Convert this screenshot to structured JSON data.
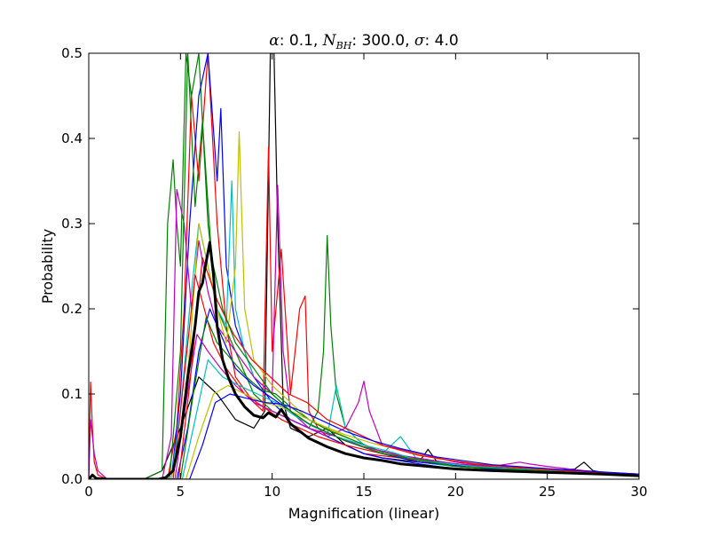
{
  "chart_data": {
    "type": "line",
    "title": {
      "alpha_symbol": "α",
      "alpha_value": ": 0.1, ",
      "nbh_symbol": "N",
      "nbh_subscript": "BH",
      "nbh_value": ": 300.0, ",
      "sigma_symbol": "σ",
      "sigma_value": ": 4.0"
    },
    "xlabel": "Magnification (linear)",
    "ylabel": "Probability",
    "xlim": [
      0,
      30
    ],
    "ylim": [
      0,
      0.5
    ],
    "xticks": [
      0,
      5,
      10,
      15,
      20,
      25,
      30
    ],
    "xtick_labels": [
      "0",
      "5",
      "10",
      "15",
      "20",
      "25",
      "30"
    ],
    "yticks": [
      0.0,
      0.1,
      0.2,
      0.3,
      0.4,
      0.5
    ],
    "ytick_labels": [
      "0.0",
      "0.1",
      "0.2",
      "0.3",
      "0.4",
      "0.5"
    ],
    "grid": false,
    "legend": "none",
    "line_colors": [
      "#ff0000",
      "#008000",
      "#0000ff",
      "#00bfbf",
      "#bf00bf",
      "#bfbf00",
      "#000000"
    ],
    "series": [
      {
        "color": "#000000",
        "emphasis": "thick",
        "x": [
          0,
          0.2,
          0.4,
          1,
          2,
          3,
          3.8,
          4.2,
          4.6,
          5,
          5.4,
          5.8,
          6.0,
          6.2,
          6.4,
          6.6,
          6.8,
          7.0,
          7.3,
          7.6,
          8.0,
          8.5,
          9.0,
          9.5,
          9.8,
          10.2,
          10.5,
          11,
          12,
          13,
          14,
          15,
          16,
          17,
          18,
          20,
          22,
          25,
          28,
          30
        ],
        "y": [
          0.0,
          0.005,
          0.001,
          0.0,
          0.0,
          0.0,
          0.0,
          0.002,
          0.01,
          0.05,
          0.12,
          0.18,
          0.22,
          0.23,
          0.255,
          0.278,
          0.24,
          0.18,
          0.14,
          0.12,
          0.1,
          0.085,
          0.075,
          0.072,
          0.078,
          0.073,
          0.082,
          0.065,
          0.048,
          0.038,
          0.03,
          0.025,
          0.022,
          0.018,
          0.016,
          0.012,
          0.01,
          0.008,
          0.006,
          0.004
        ]
      },
      {
        "color": "#000000",
        "x": [
          3,
          4,
          5,
          6,
          7,
          8,
          9,
          9.6,
          9.9,
          10.1,
          10.3,
          10.6,
          11,
          12,
          13,
          14,
          15,
          16,
          18,
          18.5,
          19,
          20,
          22,
          25,
          26.5,
          27,
          27.5,
          28,
          30
        ],
        "y": [
          0.0,
          0.01,
          0.06,
          0.12,
          0.1,
          0.07,
          0.06,
          0.08,
          0.5,
          0.5,
          0.3,
          0.09,
          0.06,
          0.05,
          0.06,
          0.04,
          0.03,
          0.025,
          0.02,
          0.035,
          0.02,
          0.015,
          0.012,
          0.01,
          0.012,
          0.02,
          0.01,
          0.008,
          0.005
        ]
      },
      {
        "color": "#ff0000",
        "x": [
          0,
          0.1,
          0.2,
          0.3,
          0.5,
          1,
          2,
          3,
          4.3,
          4.8,
          5.2,
          5.6,
          6,
          6.5,
          7,
          7.5,
          8,
          9,
          9.5,
          9.8,
          10,
          10.5,
          11,
          11.5,
          11.8,
          12,
          12.5,
          13,
          14,
          15,
          17,
          20,
          25,
          30
        ],
        "y": [
          0.0,
          0.114,
          0.06,
          0.02,
          0.005,
          0.0,
          0.0,
          0.0,
          0.0,
          0.06,
          0.2,
          0.45,
          0.35,
          0.5,
          0.3,
          0.18,
          0.12,
          0.09,
          0.08,
          0.39,
          0.15,
          0.27,
          0.1,
          0.2,
          0.215,
          0.08,
          0.06,
          0.05,
          0.04,
          0.03,
          0.025,
          0.015,
          0.01,
          0.005
        ]
      },
      {
        "color": "#008000",
        "x": [
          3,
          4,
          4.3,
          4.6,
          4.8,
          5,
          5.3,
          5.6,
          6,
          6.5,
          7,
          8,
          9,
          10,
          11,
          12,
          12.5,
          12.8,
          13,
          13.2,
          13.5,
          14,
          15,
          16,
          18,
          20,
          24,
          30
        ],
        "y": [
          0.0,
          0.01,
          0.3,
          0.375,
          0.3,
          0.25,
          0.5,
          0.45,
          0.5,
          0.3,
          0.2,
          0.15,
          0.1,
          0.08,
          0.07,
          0.06,
          0.08,
          0.15,
          0.286,
          0.18,
          0.1,
          0.06,
          0.04,
          0.03,
          0.02,
          0.015,
          0.01,
          0.005
        ]
      },
      {
        "color": "#0000ff",
        "x": [
          3,
          4.5,
          5,
          5.5,
          6,
          6.5,
          7,
          7.2,
          7.5,
          8,
          9,
          10,
          11,
          12,
          13,
          14,
          15,
          16,
          18,
          20,
          25,
          30
        ],
        "y": [
          0.0,
          0.0,
          0.1,
          0.3,
          0.45,
          0.5,
          0.35,
          0.435,
          0.25,
          0.18,
          0.12,
          0.09,
          0.07,
          0.06,
          0.05,
          0.04,
          0.03,
          0.025,
          0.018,
          0.012,
          0.008,
          0.004
        ]
      },
      {
        "color": "#00bfbf",
        "x": [
          3,
          4.5,
          5,
          5.5,
          6,
          6.5,
          7,
          7.5,
          7.8,
          8,
          8.5,
          9,
          10,
          11,
          12,
          13,
          13.5,
          14,
          15,
          16,
          17,
          18,
          20,
          25,
          30
        ],
        "y": [
          0.0,
          0.0,
          0.08,
          0.2,
          0.3,
          0.25,
          0.2,
          0.18,
          0.35,
          0.2,
          0.15,
          0.12,
          0.1,
          0.08,
          0.06,
          0.05,
          0.11,
          0.06,
          0.04,
          0.03,
          0.05,
          0.02,
          0.015,
          0.01,
          0.005
        ]
      },
      {
        "color": "#bf00bf",
        "x": [
          0,
          0.1,
          0.3,
          0.5,
          1,
          2,
          4,
          4.5,
          4.8,
          5.2,
          5.6,
          6,
          6.5,
          7,
          8,
          9,
          10,
          10.3,
          10.6,
          11,
          12,
          13,
          14,
          14.7,
          15,
          15.3,
          16,
          18,
          20,
          22,
          23.5,
          24,
          25,
          27,
          30
        ],
        "y": [
          0.0,
          0.07,
          0.03,
          0.01,
          0.0,
          0.0,
          0.0,
          0.05,
          0.34,
          0.3,
          0.2,
          0.28,
          0.22,
          0.18,
          0.15,
          0.12,
          0.1,
          0.345,
          0.15,
          0.08,
          0.06,
          0.05,
          0.06,
          0.09,
          0.115,
          0.08,
          0.04,
          0.03,
          0.02,
          0.015,
          0.02,
          0.018,
          0.015,
          0.01,
          0.005
        ]
      },
      {
        "color": "#bfbf00",
        "x": [
          3,
          4.5,
          5,
          5.5,
          6,
          6.5,
          7,
          7.5,
          8,
          8.2,
          8.5,
          9,
          10,
          11,
          12,
          14,
          16,
          20,
          25,
          30
        ],
        "y": [
          0.0,
          0.0,
          0.05,
          0.15,
          0.3,
          0.25,
          0.2,
          0.16,
          0.25,
          0.408,
          0.2,
          0.14,
          0.11,
          0.09,
          0.07,
          0.05,
          0.03,
          0.015,
          0.008,
          0.004
        ]
      },
      {
        "color": "#ff0000",
        "x": [
          3,
          4.6,
          5.2,
          5.8,
          6.3,
          6.8,
          7.5,
          8.5,
          9.5,
          10.5,
          11.5,
          12.5,
          14,
          16,
          20,
          25,
          30
        ],
        "y": [
          0.0,
          0.0,
          0.12,
          0.24,
          0.2,
          0.16,
          0.13,
          0.1,
          0.085,
          0.07,
          0.06,
          0.05,
          0.04,
          0.03,
          0.018,
          0.01,
          0.005
        ]
      },
      {
        "color": "#0000ff",
        "x": [
          3,
          4.8,
          5.4,
          6.0,
          6.6,
          7.2,
          8,
          9,
          10,
          11,
          12,
          13,
          14,
          16,
          18,
          22,
          30
        ],
        "y": [
          0.0,
          0.0,
          0.06,
          0.15,
          0.2,
          0.17,
          0.13,
          0.11,
          0.095,
          0.08,
          0.065,
          0.055,
          0.045,
          0.03,
          0.02,
          0.012,
          0.005
        ]
      },
      {
        "color": "#008000",
        "x": [
          3,
          5,
          5.7,
          6.4,
          7,
          7.8,
          8.6,
          9.4,
          10.2,
          11,
          12,
          13,
          14.5,
          16,
          19,
          23,
          30
        ],
        "y": [
          0.0,
          0.0,
          0.1,
          0.19,
          0.16,
          0.14,
          0.12,
          0.105,
          0.1,
          0.085,
          0.07,
          0.058,
          0.045,
          0.032,
          0.02,
          0.012,
          0.005
        ]
      },
      {
        "color": "#bf00bf",
        "x": [
          3,
          4.7,
          5.3,
          5.9,
          6.5,
          7.2,
          8,
          9,
          10,
          11,
          12,
          13.5,
          15,
          17,
          20,
          24,
          30
        ],
        "y": [
          0.0,
          0.0,
          0.09,
          0.17,
          0.15,
          0.13,
          0.11,
          0.09,
          0.08,
          0.07,
          0.06,
          0.05,
          0.038,
          0.028,
          0.018,
          0.011,
          0.005
        ]
      },
      {
        "color": "#00bfbf",
        "x": [
          3,
          5.1,
          5.8,
          6.5,
          7.3,
          8.2,
          9.2,
          10.2,
          11.2,
          12.2,
          13.5,
          15,
          16.5,
          18,
          21,
          25,
          30
        ],
        "y": [
          0.0,
          0.0,
          0.07,
          0.14,
          0.12,
          0.11,
          0.1,
          0.09,
          0.075,
          0.062,
          0.05,
          0.04,
          0.032,
          0.022,
          0.015,
          0.01,
          0.005
        ]
      },
      {
        "color": "#bfbf00",
        "x": [
          3,
          5.3,
          6,
          6.8,
          7.6,
          8.5,
          9.5,
          10.5,
          11.5,
          12.5,
          14,
          15.5,
          17,
          19,
          22,
          26,
          30
        ],
        "y": [
          0.0,
          0.0,
          0.05,
          0.1,
          0.11,
          0.1,
          0.09,
          0.085,
          0.075,
          0.065,
          0.052,
          0.042,
          0.034,
          0.024,
          0.016,
          0.01,
          0.006
        ]
      },
      {
        "color": "#ff0000",
        "x": [
          3,
          4.9,
          5.5,
          6.2,
          7,
          7.9,
          8.9,
          9.9,
          10.9,
          11.9,
          13,
          14.5,
          16,
          18,
          21,
          25,
          30
        ],
        "y": [
          0.0,
          0.0,
          0.11,
          0.26,
          0.21,
          0.17,
          0.14,
          0.12,
          0.1,
          0.09,
          0.07,
          0.055,
          0.04,
          0.028,
          0.018,
          0.011,
          0.006
        ]
      },
      {
        "color": "#0000ff",
        "x": [
          3,
          5.5,
          6.2,
          6.9,
          7.7,
          8.6,
          9.6,
          10.6,
          11.6,
          12.6,
          14,
          15.5,
          17,
          19,
          22,
          26,
          30
        ],
        "y": [
          0.0,
          0.0,
          0.04,
          0.09,
          0.1,
          0.095,
          0.09,
          0.088,
          0.08,
          0.07,
          0.056,
          0.045,
          0.036,
          0.026,
          0.017,
          0.011,
          0.006
        ]
      },
      {
        "color": "#008000",
        "x": [
          3,
          4.4,
          5,
          5.4,
          5.8,
          6.2,
          6.7,
          7.3,
          8,
          9,
          10,
          11,
          12,
          14,
          16,
          20,
          30
        ],
        "y": [
          0.0,
          0.0,
          0.15,
          0.5,
          0.32,
          0.42,
          0.26,
          0.2,
          0.16,
          0.13,
          0.1,
          0.08,
          0.065,
          0.045,
          0.03,
          0.015,
          0.004
        ]
      }
    ]
  }
}
